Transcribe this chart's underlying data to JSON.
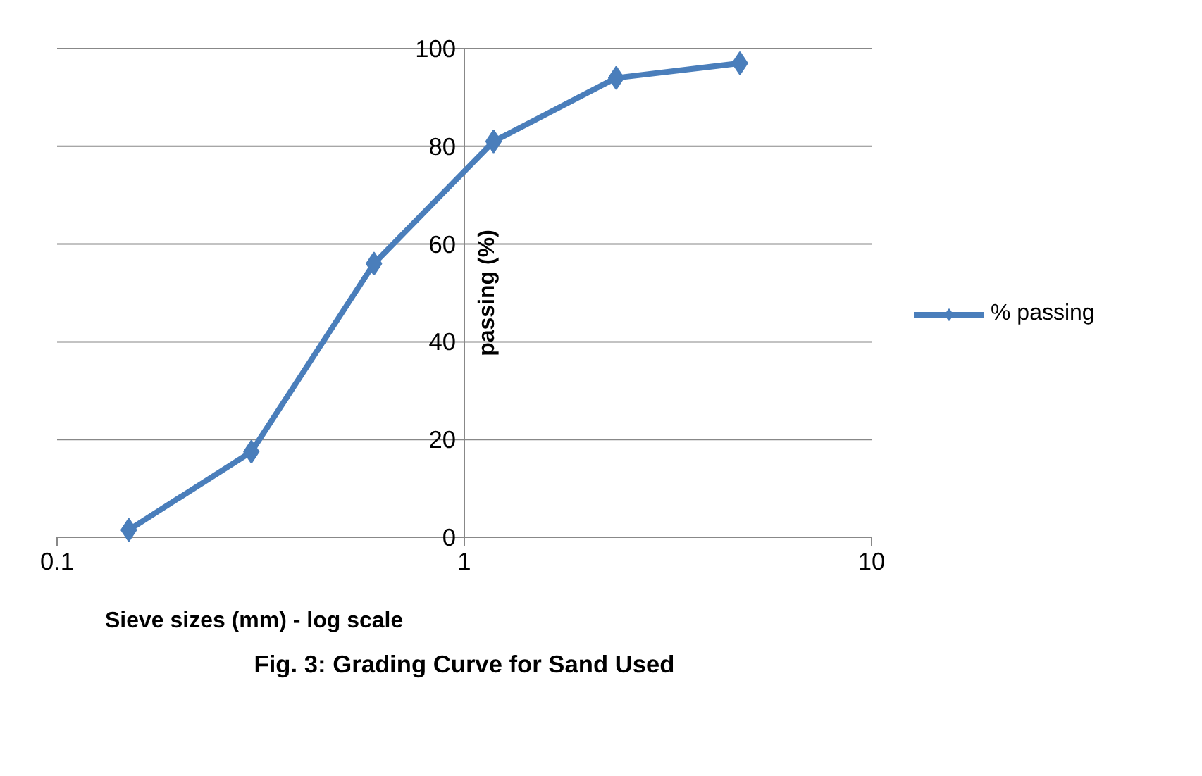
{
  "chart_data": {
    "type": "line",
    "title": "Fig. 3: Grading Curve for Sand Used",
    "xlabel": "Sieve sizes (mm) - log scale",
    "ylabel": "passing (%)",
    "x": [
      0.15,
      0.3,
      0.6,
      1.18,
      2.36,
      4.75
    ],
    "series": [
      {
        "name": "% passing",
        "color": "#4a7ebb",
        "values": [
          1.5,
          17.5,
          56,
          81,
          94,
          97
        ]
      }
    ],
    "log": "x",
    "xlim": [
      0.1,
      10
    ],
    "xticks": [
      0.1,
      1,
      10
    ],
    "ylim": [
      0,
      100
    ],
    "yticks": [
      0,
      20,
      40,
      60,
      80,
      100
    ],
    "grid": "y",
    "legend": "right",
    "marker": "diamond",
    "line_style": "solid"
  }
}
